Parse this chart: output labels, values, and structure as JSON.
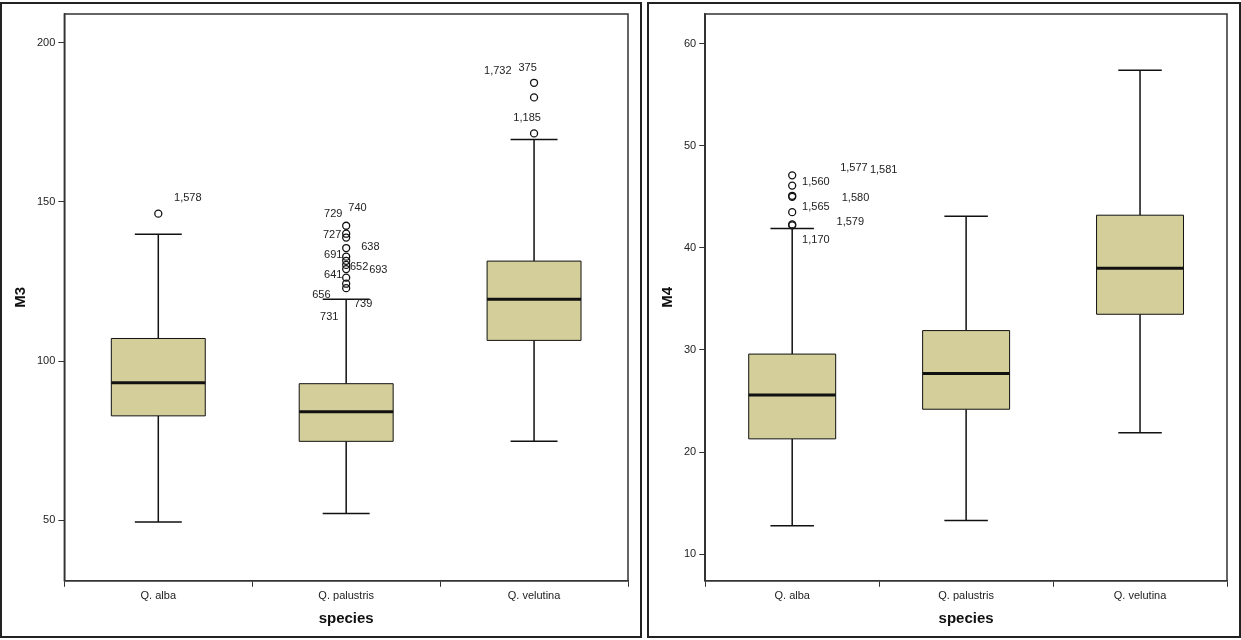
{
  "chart_data": [
    {
      "type": "box",
      "xlabel": "species",
      "ylabel": "M3",
      "categories": [
        "Q. alba",
        "Q. palustris",
        "Q. velutina"
      ],
      "color": "#d4cf9a",
      "grid": false,
      "ylim": [
        31,
        209
      ],
      "yticks": [
        50,
        100,
        150,
        200
      ],
      "boxes": [
        {
          "low": 49.5,
          "q1": 82.8,
          "median": 93.2,
          "q3": 107.1,
          "high": 139.8,
          "outliers": [
            146.3
          ]
        },
        {
          "low": 52.1,
          "q1": 74.8,
          "median": 84.1,
          "q3": 92.9,
          "high": 119.4,
          "outliers": [
            142.5,
            140,
            138.8,
            135.5,
            132.8,
            131.5,
            130.2,
            128.9,
            126.2,
            124.3,
            122.9
          ]
        },
        {
          "low": 74.8,
          "q1": 106.5,
          "median": 119.4,
          "q3": 131.4,
          "high": 169.6,
          "outliers": [
            187.4,
            182.8,
            171.5
          ]
        }
      ],
      "annotations": [
        "729",
        "740",
        "727",
        "638",
        "691",
        "652",
        "641",
        "693",
        "656",
        "739",
        "731",
        "1,578",
        "1,732",
        "375",
        "1,185"
      ]
    },
    {
      "type": "box",
      "xlabel": "species",
      "ylabel": "M4",
      "categories": [
        "Q. alba",
        "Q. palustris",
        "Q. velutina"
      ],
      "color": "#d4cf9a",
      "grid": false,
      "ylim": [
        7.4,
        62.9
      ],
      "yticks": [
        10,
        20,
        30,
        40,
        50,
        60
      ],
      "boxes": [
        {
          "low": 12.8,
          "q1": 21.3,
          "median": 25.6,
          "q3": 29.6,
          "high": 41.9,
          "outliers": [
            47.1,
            46.1,
            45.1,
            45,
            43.5,
            42.3,
            42.2
          ]
        },
        {
          "low": 13.3,
          "q1": 24.2,
          "median": 27.7,
          "q3": 31.9,
          "high": 43.1
        },
        {
          "low": 21.9,
          "q1": 33.5,
          "median": 38,
          "q3": 43.2,
          "high": 57.4
        }
      ],
      "annotations": [
        "1,560",
        "1,577",
        "1,565",
        "1,581",
        "1,170",
        "1,580",
        "1,579"
      ]
    }
  ]
}
